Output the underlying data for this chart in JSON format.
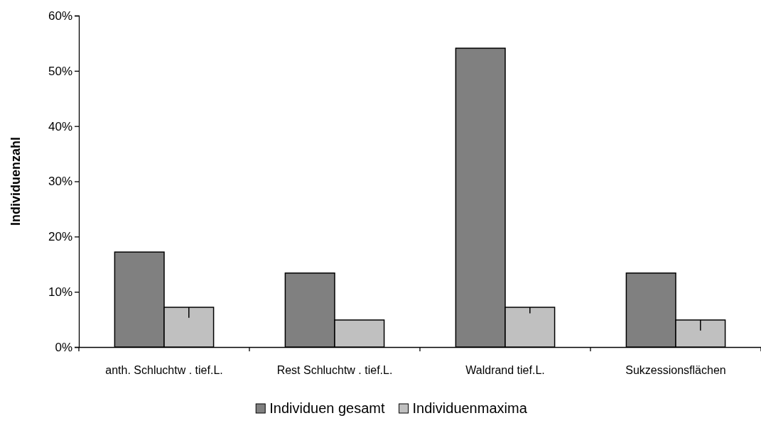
{
  "chart_data": {
    "type": "bar",
    "ylabel": "Individuenzahl",
    "categories": [
      "anth. Schluchtw . tief.L.",
      "Rest Schluchtw . tief.L.",
      "Waldrand tief.L.",
      "Sukzessionsflächen"
    ],
    "series": [
      {
        "name": "Individuen gesamt",
        "color": "#808080",
        "values": [
          17.2,
          13.4,
          54.1,
          13.4
        ]
      },
      {
        "name": "Individuenmaxima",
        "color": "#c0c0c0",
        "values": [
          7.2,
          4.9,
          7.2,
          4.9
        ],
        "errors": [
          [
            5.3,
            7.2
          ],
          null,
          [
            6.1,
            7.2
          ],
          [
            3.0,
            4.9
          ]
        ]
      }
    ],
    "ylim": [
      0,
      60
    ],
    "yticks": [
      {
        "value": 0,
        "label": "0%"
      },
      {
        "value": 10,
        "label": "10%"
      },
      {
        "value": 20,
        "label": "20%"
      },
      {
        "value": 30,
        "label": "30%"
      },
      {
        "value": 40,
        "label": "40%"
      },
      {
        "value": 50,
        "label": "50%"
      },
      {
        "value": 60,
        "label": "60%"
      }
    ],
    "grid": false,
    "legend": "bottom"
  }
}
